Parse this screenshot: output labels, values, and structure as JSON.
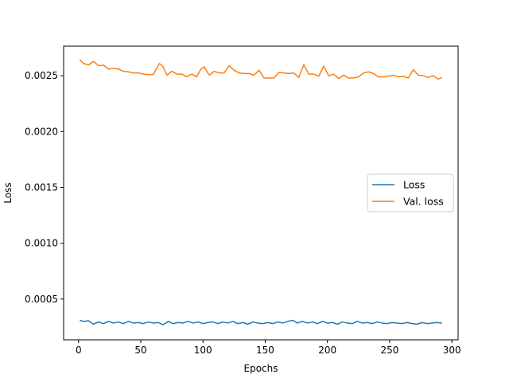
{
  "chart_data": {
    "type": "line",
    "title": "",
    "xlabel": "Epochs",
    "ylabel": "Loss",
    "xlim": [
      -12,
      305
    ],
    "ylim": [
      0.000135,
      0.002765
    ],
    "xticks": [
      0,
      50,
      100,
      150,
      200,
      250,
      300
    ],
    "xtick_labels": [
      "0",
      "50",
      "100",
      "150",
      "200",
      "250",
      "300"
    ],
    "yticks": [
      0.0005,
      0.001,
      0.0015,
      0.002,
      0.0025
    ],
    "ytick_labels": [
      "0.0005",
      "0.0010",
      "0.0015",
      "0.0020",
      "0.0025"
    ],
    "grid": false,
    "legend_position": "center-right",
    "series": [
      {
        "name": "Loss",
        "color": "#1f77b4",
        "x": [
          1,
          4,
          8,
          12,
          16,
          20,
          24,
          28,
          32,
          36,
          40,
          44,
          48,
          52,
          56,
          60,
          64,
          68,
          72,
          76,
          80,
          84,
          88,
          92,
          96,
          100,
          104,
          108,
          112,
          116,
          120,
          124,
          128,
          132,
          136,
          140,
          144,
          148,
          152,
          156,
          160,
          164,
          168,
          172,
          176,
          180,
          184,
          188,
          192,
          196,
          200,
          204,
          208,
          212,
          216,
          220,
          224,
          228,
          232,
          236,
          240,
          244,
          248,
          252,
          256,
          260,
          264,
          268,
          272,
          276,
          280,
          284,
          288,
          292
        ],
        "y": [
          0.00031,
          0.0003,
          0.000305,
          0.000275,
          0.000295,
          0.00028,
          0.0003,
          0.000285,
          0.000295,
          0.00028,
          0.0003,
          0.000285,
          0.00029,
          0.00028,
          0.000295,
          0.000285,
          0.00029,
          0.00027,
          0.0003,
          0.00028,
          0.00029,
          0.000285,
          0.0003,
          0.000285,
          0.000295,
          0.00028,
          0.00029,
          0.000295,
          0.00028,
          0.000295,
          0.000285,
          0.0003,
          0.00028,
          0.00029,
          0.000275,
          0.000295,
          0.000285,
          0.00028,
          0.00029,
          0.00028,
          0.000295,
          0.000285,
          0.0003,
          0.00031,
          0.000285,
          0.0003,
          0.000285,
          0.000295,
          0.00028,
          0.0003,
          0.000285,
          0.00029,
          0.000275,
          0.000295,
          0.000285,
          0.00028,
          0.0003,
          0.000285,
          0.00029,
          0.00028,
          0.000295,
          0.000285,
          0.00028,
          0.00029,
          0.000285,
          0.00028,
          0.00029,
          0.00028,
          0.000275,
          0.00029,
          0.00028,
          0.000285,
          0.00029,
          0.000285
        ]
      },
      {
        "name": "Val. loss",
        "color": "#ff7f0e",
        "x": [
          1,
          4,
          8,
          12,
          16,
          20,
          24,
          28,
          32,
          36,
          40,
          44,
          48,
          52,
          56,
          60,
          62,
          65,
          68,
          71,
          75,
          79,
          83,
          87,
          91,
          95,
          98,
          101,
          105,
          109,
          113,
          117,
          121,
          125,
          129,
          133,
          137,
          141,
          145,
          149,
          153,
          157,
          161,
          165,
          169,
          173,
          177,
          181,
          185,
          189,
          193,
          197,
          201,
          205,
          209,
          213,
          217,
          221,
          225,
          229,
          233,
          237,
          241,
          245,
          249,
          253,
          257,
          261,
          265,
          269,
          273,
          277,
          281,
          285,
          289,
          292
        ],
        "y": [
          0.002645,
          0.00261,
          0.002595,
          0.00263,
          0.00259,
          0.002595,
          0.00256,
          0.002565,
          0.00256,
          0.00254,
          0.002535,
          0.002525,
          0.002525,
          0.002515,
          0.00251,
          0.00251,
          0.00255,
          0.00261,
          0.00258,
          0.002505,
          0.00254,
          0.002515,
          0.002515,
          0.00249,
          0.002515,
          0.00249,
          0.002555,
          0.00258,
          0.002505,
          0.00254,
          0.002525,
          0.002525,
          0.00259,
          0.00255,
          0.002525,
          0.00252,
          0.00252,
          0.002505,
          0.00255,
          0.00248,
          0.00248,
          0.00248,
          0.00253,
          0.002525,
          0.00252,
          0.002525,
          0.002485,
          0.0026,
          0.002515,
          0.002515,
          0.002495,
          0.002585,
          0.0025,
          0.002515,
          0.002475,
          0.002505,
          0.00248,
          0.00248,
          0.00249,
          0.002525,
          0.002535,
          0.00252,
          0.00249,
          0.00249,
          0.002495,
          0.002505,
          0.00249,
          0.002495,
          0.00248,
          0.002555,
          0.002505,
          0.0025,
          0.002485,
          0.0025,
          0.00247,
          0.002485
        ]
      }
    ]
  }
}
